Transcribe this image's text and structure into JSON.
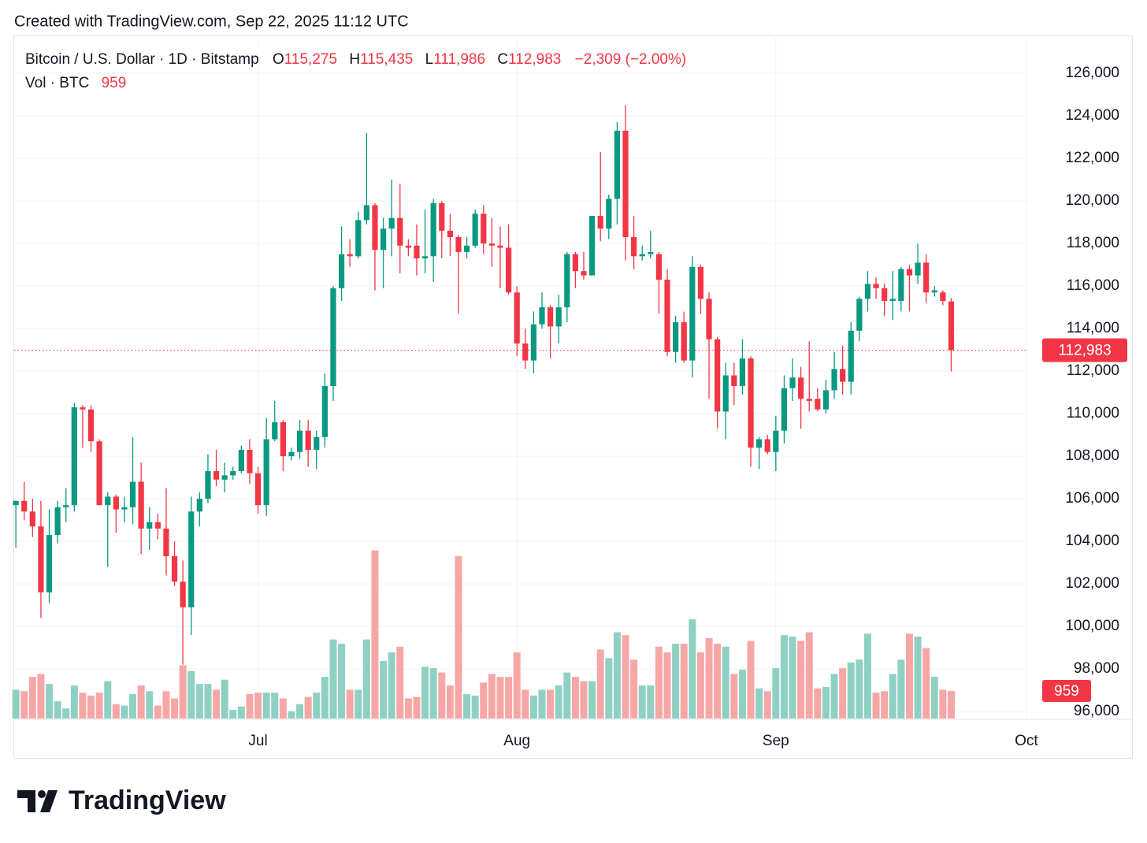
{
  "page": {
    "created": "Created with TradingView.com, Sep 22, 2025 11:12 UTC",
    "brand": "TradingView"
  },
  "chart_data": {
    "type": "candlestick",
    "legend": {
      "symbol": "Bitcoin / U.S. Dollar · 1D · Bitstamp",
      "ohlc": [
        {
          "key": "O",
          "label": "115,275"
        },
        {
          "key": "H",
          "label": "115,435"
        },
        {
          "key": "L",
          "label": "111,986"
        },
        {
          "key": "C",
          "label": "112,983"
        }
      ],
      "change": "−2,309 (−2.00%)",
      "volume_name": "Vol · BTC",
      "volume_label": "959"
    },
    "last_price": {
      "value": 112983,
      "label": "112,983"
    },
    "last_volume": {
      "value": 959,
      "label": "959"
    },
    "up_color": "#089981",
    "down_color": "#f23645",
    "up_volume_color": "#8fd0c4",
    "down_volume_color": "#f7a6a6",
    "grid": true,
    "xlim": [
      -0.2,
      121.2
    ],
    "xticks": [
      {
        "value": 29,
        "label": "Jul"
      },
      {
        "value": 60,
        "label": "Aug"
      },
      {
        "value": 91,
        "label": "Sep"
      },
      {
        "value": 121,
        "label": "Oct"
      }
    ],
    "ylim": [
      95670,
      127780
    ],
    "yticks": [
      {
        "value": 96000,
        "label": "96,000"
      },
      {
        "value": 98000,
        "label": "98,000"
      },
      {
        "value": 100000,
        "label": "100,000"
      },
      {
        "value": 102000,
        "label": "102,000"
      },
      {
        "value": 104000,
        "label": "104,000"
      },
      {
        "value": 106000,
        "label": "106,000"
      },
      {
        "value": 108000,
        "label": "108,000"
      },
      {
        "value": 110000,
        "label": "110,000"
      },
      {
        "value": 112000,
        "label": "112,000"
      },
      {
        "value": 114000,
        "label": "114,000"
      },
      {
        "value": 116000,
        "label": "116,000"
      },
      {
        "value": 118000,
        "label": "118,000"
      },
      {
        "value": 120000,
        "label": "120,000"
      },
      {
        "value": 122000,
        "label": "122,000"
      },
      {
        "value": 124000,
        "label": "124,000"
      },
      {
        "value": 126000,
        "label": "126,000"
      }
    ],
    "volume_lim": [
      0,
      23760
    ],
    "open": [
      105700,
      105900,
      105400,
      104700,
      101600,
      104300,
      105600,
      105700,
      110300,
      110200,
      108700,
      105700,
      106100,
      105500,
      105600,
      106800,
      104600,
      104900,
      104600,
      103300,
      102100,
      100900,
      105400,
      106000,
      107300,
      106900,
      107100,
      107300,
      108300,
      107200,
      105700,
      108800,
      109600,
      108000,
      108200,
      109200,
      108300,
      108900,
      111300,
      115900,
      117500,
      117400,
      119100,
      119800,
      117700,
      118700,
      119200,
      117900,
      117900,
      117300,
      117400,
      119900,
      118600,
      118300,
      117600,
      117900,
      119400,
      118000,
      117900,
      117800,
      115700,
      113300,
      112500,
      114200,
      115000,
      114100,
      115000,
      117500,
      116700,
      116500,
      119300,
      118700,
      120100,
      123300,
      118300,
      117400,
      117500,
      117500,
      116300,
      112900,
      114300,
      112500,
      116900,
      115400,
      113500,
      110100,
      111800,
      111300,
      112600,
      108400,
      108800,
      108200,
      109200,
      111200,
      111700,
      110700,
      110700,
      110200,
      111100,
      112100,
      111500,
      113900,
      115400,
      116100,
      115900,
      115300,
      115300,
      116800,
      116500,
      117100,
      115700,
      115700,
      115275
    ],
    "high": [
      105900,
      106800,
      106000,
      105900,
      105500,
      105900,
      106500,
      110500,
      110400,
      110400,
      108800,
      106300,
      106200,
      106100,
      108900,
      107700,
      105600,
      105300,
      106500,
      104000,
      103100,
      106100,
      106300,
      108100,
      108300,
      107700,
      107500,
      108500,
      108800,
      107500,
      109800,
      110600,
      109700,
      108400,
      109700,
      109700,
      109200,
      111900,
      116000,
      118800,
      118200,
      119500,
      123200,
      119900,
      119200,
      121000,
      120800,
      118200,
      118900,
      119600,
      120100,
      120000,
      119400,
      118400,
      118300,
      119600,
      119800,
      119200,
      118800,
      118900,
      116000,
      114000,
      114800,
      115700,
      115100,
      115600,
      117600,
      117600,
      117600,
      119300,
      122300,
      120300,
      123700,
      124500,
      119300,
      117900,
      118600,
      117600,
      116800,
      114600,
      114800,
      117400,
      117000,
      115700,
      113600,
      112400,
      112400,
      113500,
      112700,
      108900,
      109000,
      109900,
      111800,
      112600,
      112200,
      113400,
      111200,
      111600,
      112900,
      113200,
      114300,
      115500,
      116700,
      116400,
      116100,
      116700,
      116900,
      117000,
      118000,
      117500,
      116000,
      115800,
      115435
    ],
    "low": [
      103700,
      105000,
      104200,
      100400,
      101100,
      103900,
      104900,
      105400,
      108400,
      108200,
      105700,
      102800,
      104400,
      104900,
      104800,
      103400,
      103600,
      104100,
      102400,
      101900,
      98200,
      99600,
      104700,
      105800,
      106600,
      106300,
      106900,
      107200,
      106700,
      105300,
      105200,
      108700,
      107300,
      107800,
      107900,
      107500,
      107400,
      108400,
      110600,
      115300,
      116900,
      117300,
      118900,
      115800,
      115900,
      117400,
      116600,
      117400,
      116500,
      116600,
      116200,
      117300,
      117400,
      114700,
      117300,
      117800,
      117500,
      116900,
      115900,
      115600,
      112700,
      112100,
      111900,
      114000,
      112600,
      113300,
      114300,
      115900,
      116300,
      116500,
      118100,
      118200,
      118900,
      117200,
      116800,
      117200,
      117300,
      114700,
      112700,
      112400,
      112400,
      111700,
      114700,
      110700,
      109300,
      108800,
      110400,
      110900,
      107500,
      107400,
      108100,
      107300,
      108600,
      110600,
      109300,
      110100,
      110100,
      110000,
      110700,
      110900,
      110900,
      113400,
      114800,
      115400,
      114600,
      114400,
      114800,
      114800,
      116100,
      115200,
      115500,
      115100,
      111986
    ],
    "close": [
      105900,
      105400,
      104700,
      101600,
      104300,
      105600,
      105700,
      110300,
      110200,
      108700,
      105700,
      106100,
      105500,
      105600,
      106800,
      104600,
      104900,
      104600,
      103300,
      102100,
      100900,
      105400,
      106000,
      107300,
      106900,
      107100,
      107300,
      108300,
      107200,
      105700,
      108800,
      109600,
      108000,
      108200,
      109200,
      108300,
      108900,
      111300,
      115900,
      117500,
      117400,
      119100,
      119800,
      117700,
      118700,
      119200,
      117900,
      117800,
      117300,
      117400,
      119900,
      118600,
      118300,
      117600,
      117900,
      119400,
      118000,
      117900,
      117800,
      115700,
      113300,
      112500,
      114200,
      115000,
      114100,
      115000,
      117500,
      116700,
      116500,
      119300,
      118700,
      120100,
      123300,
      118300,
      117400,
      117500,
      117600,
      116300,
      112900,
      114300,
      112500,
      116900,
      115400,
      113500,
      110100,
      111800,
      111300,
      112600,
      108400,
      108800,
      108200,
      109200,
      111200,
      111700,
      110700,
      110600,
      110200,
      111100,
      112100,
      111500,
      113900,
      115400,
      116100,
      115900,
      115300,
      115400,
      116800,
      116500,
      117100,
      115700,
      115800,
      115300,
      112983
    ],
    "volume": [
      1000,
      950,
      1450,
      1550,
      1200,
      600,
      350,
      1150,
      900,
      800,
      900,
      1300,
      500,
      450,
      850,
      1150,
      950,
      450,
      950,
      700,
      1850,
      1650,
      1200,
      1200,
      1000,
      1350,
      300,
      420,
      850,
      900,
      900,
      900,
      700,
      250,
      500,
      750,
      900,
      1450,
      2750,
      2600,
      1000,
      1000,
      2750,
      5850,
      2000,
      2300,
      2500,
      700,
      750,
      1800,
      1750,
      1600,
      1150,
      5650,
      850,
      800,
      1250,
      1550,
      1450,
      1450,
      2300,
      1000,
      800,
      1000,
      1000,
      1150,
      1600,
      1450,
      1300,
      1300,
      2400,
      2100,
      3000,
      2900,
      2050,
      1150,
      1150,
      2500,
      2300,
      2600,
      2600,
      3450,
      2300,
      2800,
      2600,
      2500,
      1550,
      1700,
      2700,
      1050,
      950,
      1750,
      2900,
      2850,
      2700,
      3000,
      1050,
      1100,
      1550,
      1750,
      1950,
      2050,
      2950,
      900,
      950,
      1550,
      2050,
      2950,
      2850,
      2450,
      1450,
      1000,
      959
    ]
  }
}
